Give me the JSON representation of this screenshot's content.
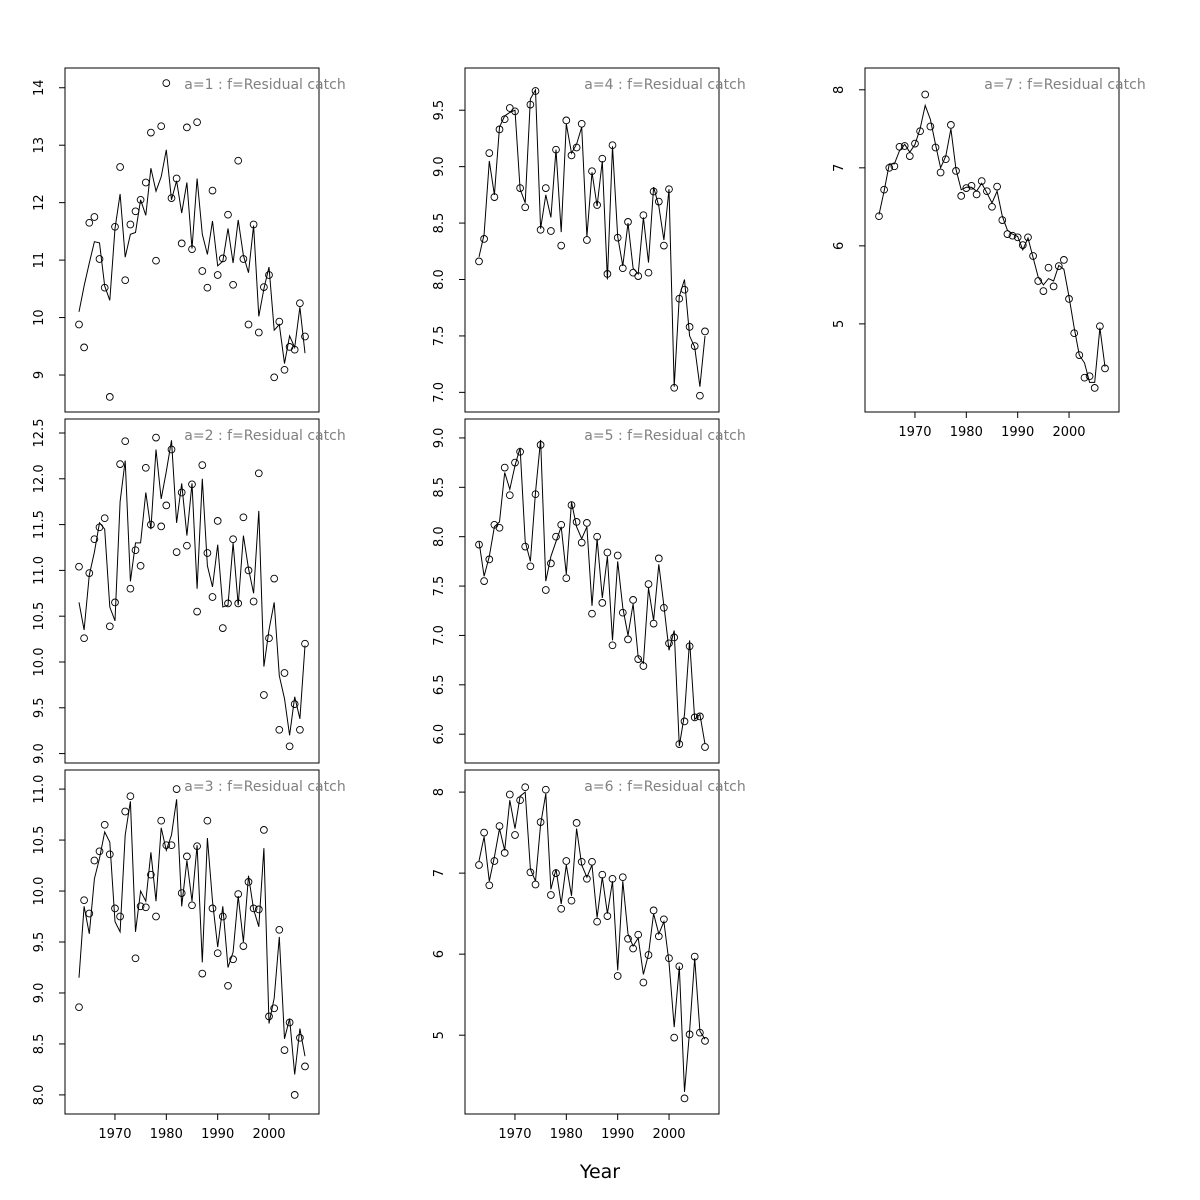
{
  "chart_data": {
    "type": "line",
    "xlabel": "Year",
    "x_ticks": [
      1970,
      1980,
      1990,
      2000
    ],
    "xlim": [
      1963,
      2007
    ],
    "panels": [
      {
        "title": "a=1 : f=Residual catch",
        "ylim": [
          8.6,
          14.1
        ],
        "yticks": [
          "9",
          "10",
          "11",
          "12",
          "13",
          "14"
        ],
        "years": [
          1963,
          1964,
          1965,
          1966,
          1967,
          1968,
          1969,
          1970,
          1971,
          1972,
          1973,
          1974,
          1975,
          1976,
          1977,
          1978,
          1979,
          1980,
          1981,
          1982,
          1983,
          1984,
          1985,
          1986,
          1987,
          1988,
          1989,
          1990,
          1991,
          1992,
          1993,
          1994,
          1995,
          1996,
          1997,
          1998,
          1999,
          2000,
          2001,
          2002,
          2003,
          2004,
          2005,
          2006,
          2007
        ],
        "observed": [
          9.88,
          9.48,
          11.65,
          11.75,
          11.02,
          10.52,
          8.62,
          11.58,
          12.62,
          10.65,
          11.62,
          11.85,
          12.05,
          12.35,
          13.22,
          10.99,
          13.33,
          14.08,
          12.08,
          12.42,
          11.29,
          13.31,
          11.19,
          13.4,
          10.81,
          10.52,
          12.21,
          10.74,
          11.03,
          11.79,
          10.57,
          12.73,
          11.02,
          9.88,
          11.62,
          9.74,
          10.53,
          10.74,
          8.96,
          9.93,
          9.09,
          9.49,
          9.44,
          10.25,
          9.67
        ],
        "fitted": [
          10.1,
          10.55,
          10.95,
          11.32,
          11.3,
          10.55,
          10.3,
          11.55,
          12.15,
          11.05,
          11.45,
          11.48,
          12.05,
          11.78,
          12.6,
          12.2,
          12.45,
          12.92,
          12.05,
          12.38,
          11.82,
          12.35,
          11.2,
          12.42,
          11.45,
          11.1,
          11.68,
          10.9,
          10.98,
          11.55,
          10.95,
          11.7,
          11.08,
          10.78,
          11.6,
          10.02,
          10.5,
          10.88,
          9.78,
          9.88,
          9.2,
          9.68,
          9.48,
          10.18,
          9.38
        ]
      },
      {
        "title": "a=2 : f=Residual catch",
        "ylim": [
          9.05,
          12.5
        ],
        "yticks": [
          "9.0",
          "9.5",
          "10.0",
          "10.5",
          "11.0",
          "11.5",
          "12.0",
          "12.5"
        ],
        "years": [
          1963,
          1964,
          1965,
          1966,
          1967,
          1968,
          1969,
          1970,
          1971,
          1972,
          1973,
          1974,
          1975,
          1976,
          1977,
          1978,
          1979,
          1980,
          1981,
          1982,
          1983,
          1984,
          1985,
          1986,
          1987,
          1988,
          1989,
          1990,
          1991,
          1992,
          1993,
          1994,
          1995,
          1996,
          1997,
          1998,
          1999,
          2000,
          2001,
          2002,
          2003,
          2004,
          2005,
          2006,
          2007
        ],
        "observed": [
          11.04,
          10.26,
          10.97,
          11.34,
          11.47,
          11.57,
          10.39,
          10.65,
          12.16,
          12.41,
          10.8,
          11.22,
          11.05,
          12.12,
          11.5,
          12.45,
          11.48,
          11.71,
          12.32,
          11.2,
          11.85,
          11.27,
          11.94,
          10.55,
          12.15,
          11.19,
          10.71,
          11.54,
          10.37,
          10.64,
          11.34,
          10.64,
          11.58,
          11.0,
          10.66,
          12.06,
          9.64,
          10.26,
          10.91,
          9.26,
          9.88,
          9.08,
          9.54,
          9.26,
          10.2
        ],
        "fitted": [
          10.65,
          10.35,
          10.95,
          11.2,
          11.52,
          11.45,
          10.6,
          10.45,
          11.75,
          12.2,
          10.88,
          11.3,
          11.3,
          11.85,
          11.45,
          12.32,
          11.78,
          12.08,
          12.42,
          11.52,
          11.95,
          11.38,
          11.95,
          10.8,
          12.0,
          11.05,
          10.82,
          11.28,
          10.6,
          10.62,
          11.3,
          10.62,
          11.38,
          11.02,
          10.75,
          11.65,
          9.95,
          10.35,
          10.65,
          9.85,
          9.6,
          9.2,
          9.62,
          9.38,
          10.18
        ]
      },
      {
        "title": "a=3 : f=Residual catch",
        "ylim": [
          7.95,
          11.05
        ],
        "yticks": [
          "8.0",
          "8.5",
          "9.0",
          "9.5",
          "10.0",
          "10.5",
          "11.0"
        ],
        "years": [
          1963,
          1964,
          1965,
          1966,
          1967,
          1968,
          1969,
          1970,
          1971,
          1972,
          1973,
          1974,
          1975,
          1976,
          1977,
          1978,
          1979,
          1980,
          1981,
          1982,
          1983,
          1984,
          1985,
          1986,
          1987,
          1988,
          1989,
          1990,
          1991,
          1992,
          1993,
          1994,
          1995,
          1996,
          1997,
          1998,
          1999,
          2000,
          2001,
          2002,
          2003,
          2004,
          2005,
          2006,
          2007
        ],
        "observed": [
          8.86,
          9.91,
          9.78,
          10.3,
          10.39,
          10.65,
          10.36,
          9.83,
          9.75,
          10.78,
          10.93,
          9.34,
          9.85,
          9.84,
          10.16,
          9.75,
          10.69,
          10.45,
          10.45,
          11.0,
          9.98,
          10.34,
          9.86,
          10.44,
          9.19,
          10.69,
          9.83,
          9.39,
          9.75,
          9.07,
          9.33,
          9.97,
          9.46,
          10.09,
          9.83,
          9.82,
          10.6,
          8.77,
          8.85,
          9.62,
          8.44,
          8.71,
          8.0,
          8.56,
          8.28
        ],
        "fitted": [
          9.15,
          9.85,
          9.58,
          10.12,
          10.32,
          10.58,
          10.48,
          9.7,
          9.6,
          10.55,
          10.88,
          9.6,
          10.0,
          9.9,
          10.38,
          9.9,
          10.62,
          10.4,
          10.55,
          10.9,
          9.85,
          10.3,
          9.9,
          10.45,
          9.3,
          10.52,
          9.9,
          9.45,
          9.85,
          9.25,
          9.4,
          9.95,
          9.5,
          10.15,
          9.82,
          9.65,
          10.42,
          8.7,
          8.95,
          9.55,
          8.55,
          8.75,
          8.2,
          8.65,
          8.38
        ]
      },
      {
        "title": "a=4 : f=Residual catch",
        "ylim": [
          6.95,
          9.75
        ],
        "yticks": [
          "7.0",
          "7.5",
          "8.0",
          "8.5",
          "9.0",
          "9.5"
        ],
        "years": [
          1963,
          1964,
          1965,
          1966,
          1967,
          1968,
          1969,
          1970,
          1971,
          1972,
          1973,
          1974,
          1975,
          1976,
          1977,
          1978,
          1979,
          1980,
          1981,
          1982,
          1983,
          1984,
          1985,
          1986,
          1987,
          1988,
          1989,
          1990,
          1991,
          1992,
          1993,
          1994,
          1995,
          1996,
          1997,
          1998,
          1999,
          2000,
          2001,
          2002,
          2003,
          2004,
          2005,
          2006,
          2007
        ],
        "observed": [
          8.16,
          8.36,
          9.12,
          8.73,
          9.33,
          9.42,
          9.52,
          9.49,
          8.81,
          8.64,
          9.55,
          9.67,
          8.44,
          8.81,
          8.43,
          9.15,
          8.3,
          9.41,
          9.1,
          9.17,
          9.38,
          8.35,
          8.96,
          8.66,
          9.07,
          8.05,
          9.19,
          8.37,
          8.1,
          8.51,
          8.06,
          8.03,
          8.57,
          8.06,
          8.78,
          8.69,
          8.3,
          8.8,
          7.04,
          7.83,
          7.91,
          7.58,
          7.41,
          6.97,
          7.54
        ],
        "fitted": [
          8.2,
          8.4,
          9.05,
          8.75,
          9.35,
          9.45,
          9.48,
          9.5,
          8.8,
          8.68,
          9.6,
          9.68,
          8.45,
          8.75,
          8.55,
          9.15,
          8.42,
          9.38,
          9.12,
          9.2,
          9.35,
          8.38,
          8.95,
          8.65,
          9.05,
          8.0,
          9.18,
          8.38,
          8.12,
          8.5,
          8.1,
          8.05,
          8.55,
          8.15,
          8.82,
          8.65,
          8.35,
          8.8,
          7.05,
          7.85,
          8.0,
          7.5,
          7.4,
          7.05,
          7.5
        ]
      },
      {
        "title": "a=5 : f=Residual catch",
        "ylim": [
          5.85,
          9.05
        ],
        "yticks": [
          "6.0",
          "6.5",
          "7.0",
          "7.5",
          "8.0",
          "8.5",
          "9.0"
        ],
        "years": [
          1963,
          1964,
          1965,
          1966,
          1967,
          1968,
          1969,
          1970,
          1971,
          1972,
          1973,
          1974,
          1975,
          1976,
          1977,
          1978,
          1979,
          1980,
          1981,
          1982,
          1983,
          1984,
          1985,
          1986,
          1987,
          1988,
          1989,
          1990,
          1991,
          1992,
          1993,
          1994,
          1995,
          1996,
          1997,
          1998,
          1999,
          2000,
          2001,
          2002,
          2003,
          2004,
          2005,
          2006,
          2007
        ],
        "observed": [
          7.92,
          7.55,
          7.77,
          8.12,
          8.09,
          8.7,
          8.42,
          8.75,
          8.86,
          7.9,
          7.7,
          8.43,
          8.93,
          7.46,
          7.73,
          8.0,
          8.12,
          7.58,
          8.32,
          8.15,
          7.94,
          8.14,
          7.22,
          8.0,
          7.33,
          7.84,
          6.9,
          7.81,
          7.23,
          6.96,
          7.36,
          6.76,
          6.69,
          7.52,
          7.12,
          7.78,
          7.28,
          6.92,
          6.98,
          5.9,
          6.13,
          6.89,
          6.17,
          6.18,
          5.87
        ],
        "fitted": [
          7.95,
          7.6,
          7.8,
          8.1,
          8.15,
          8.65,
          8.48,
          8.72,
          8.9,
          7.95,
          7.75,
          8.45,
          8.98,
          7.55,
          7.8,
          7.95,
          8.1,
          7.62,
          8.35,
          8.1,
          7.98,
          8.1,
          7.3,
          7.98,
          7.38,
          7.8,
          6.95,
          7.75,
          7.28,
          7.0,
          7.32,
          6.78,
          6.72,
          7.48,
          7.15,
          7.72,
          7.3,
          6.85,
          7.05,
          5.88,
          6.2,
          6.95,
          6.15,
          6.2,
          5.9
        ]
      },
      {
        "title": "a=6 : f=Residual catch",
        "ylim": [
          4.2,
          8.1
        ],
        "yticks": [
          "5",
          "6",
          "7",
          "8"
        ],
        "years": [
          1963,
          1964,
          1965,
          1966,
          1967,
          1968,
          1969,
          1970,
          1971,
          1972,
          1973,
          1974,
          1975,
          1976,
          1977,
          1978,
          1979,
          1980,
          1981,
          1982,
          1983,
          1984,
          1985,
          1986,
          1987,
          1988,
          1989,
          1990,
          1991,
          1992,
          1993,
          1994,
          1995,
          1996,
          1997,
          1998,
          1999,
          2000,
          2001,
          2002,
          2003,
          2004,
          2005,
          2006,
          2007
        ],
        "observed": [
          7.1,
          7.5,
          6.85,
          7.15,
          7.58,
          7.25,
          7.97,
          7.47,
          7.9,
          8.06,
          7.01,
          6.86,
          7.63,
          8.03,
          6.73,
          7.0,
          6.56,
          7.15,
          6.66,
          7.62,
          7.14,
          6.93,
          7.14,
          6.4,
          6.98,
          6.47,
          6.93,
          5.73,
          6.95,
          6.19,
          6.07,
          6.24,
          5.65,
          5.99,
          6.54,
          6.22,
          6.43,
          5.95,
          4.97,
          5.85,
          4.22,
          5.01,
          5.97,
          5.03,
          4.93
        ],
        "fitted": [
          7.15,
          7.45,
          6.9,
          7.2,
          7.55,
          7.28,
          7.9,
          7.55,
          7.95,
          8.0,
          7.05,
          6.9,
          7.6,
          7.98,
          6.8,
          7.05,
          6.62,
          7.1,
          6.72,
          7.55,
          7.1,
          6.95,
          7.1,
          6.45,
          6.95,
          6.5,
          6.9,
          5.8,
          6.9,
          6.25,
          6.1,
          6.2,
          5.75,
          6.0,
          6.5,
          6.25,
          6.4,
          5.9,
          5.1,
          5.85,
          4.3,
          5.05,
          5.95,
          5.05,
          4.95
        ]
      },
      {
        "title": "a=7 : f=Residual catch",
        "ylim": [
          4.05,
          8.1
        ],
        "yticks": [
          "5",
          "6",
          "7",
          "8"
        ],
        "years": [
          1963,
          1964,
          1965,
          1966,
          1967,
          1968,
          1969,
          1970,
          1971,
          1972,
          1973,
          1974,
          1975,
          1976,
          1977,
          1978,
          1979,
          1980,
          1981,
          1982,
          1983,
          1984,
          1985,
          1986,
          1987,
          1988,
          1989,
          1990,
          1991,
          1992,
          1993,
          1994,
          1995,
          1996,
          1997,
          1998,
          1999,
          2000,
          2001,
          2002,
          2003,
          2004,
          2005,
          2006,
          2007
        ],
        "observed": [
          6.38,
          6.72,
          7.0,
          7.02,
          7.27,
          7.28,
          7.15,
          7.31,
          7.47,
          7.94,
          7.53,
          7.26,
          6.94,
          7.11,
          7.55,
          6.96,
          6.64,
          6.74,
          6.77,
          6.66,
          6.83,
          6.7,
          6.5,
          6.76,
          6.33,
          6.15,
          6.13,
          6.11,
          6.01,
          6.11,
          5.87,
          5.55,
          5.42,
          5.72,
          5.48,
          5.74,
          5.82,
          5.32,
          4.88,
          4.6,
          4.31,
          4.33,
          4.18,
          4.97,
          4.43
        ],
        "fitted": [
          6.4,
          6.7,
          7.05,
          7.05,
          7.22,
          7.3,
          7.2,
          7.3,
          7.5,
          7.8,
          7.62,
          7.3,
          7.0,
          7.15,
          7.5,
          6.98,
          6.72,
          6.75,
          6.75,
          6.7,
          6.8,
          6.68,
          6.55,
          6.7,
          6.38,
          6.2,
          6.15,
          6.12,
          5.95,
          6.1,
          5.85,
          5.6,
          5.5,
          5.58,
          5.55,
          5.75,
          5.7,
          5.35,
          4.95,
          4.6,
          4.5,
          4.25,
          4.25,
          4.95,
          4.45
        ]
      }
    ]
  }
}
